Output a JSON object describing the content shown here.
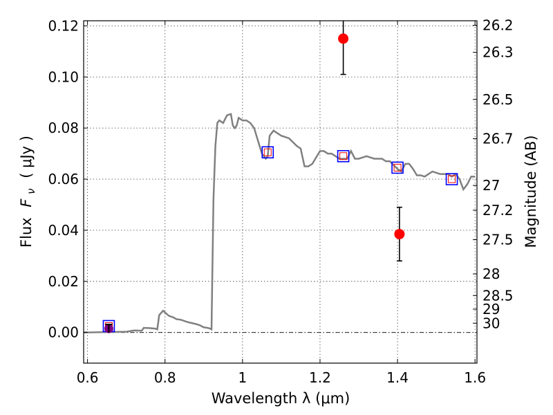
{
  "chart_data": {
    "type": "line",
    "xlabel": "Wavelength  λ (μm)",
    "ylabel_text": "Flux",
    "ylabel_symbol": "F",
    "ylabel_subscript": "ν",
    "ylabel_unit": "( μJy )",
    "y2label": "Magnitude (AB)",
    "xlim": [
      0.59,
      1.605
    ],
    "ylim": [
      -0.012,
      0.122
    ],
    "grid": true,
    "x_ticks": [
      0.6,
      0.8,
      1.0,
      1.2,
      1.4,
      1.6
    ],
    "x_tick_labels": [
      "0.6",
      "0.8",
      "1",
      "1.2",
      "1.4",
      "1.6"
    ],
    "y_ticks": [
      0.0,
      0.02,
      0.04,
      0.06,
      0.08,
      0.1,
      0.12
    ],
    "y_tick_labels": [
      "0.00",
      "0.02",
      "0.04",
      "0.06",
      "0.08",
      "0.10",
      "0.12"
    ],
    "mag_ticks": [
      26.2,
      26.3,
      26.5,
      26.7,
      27,
      27.2,
      27.5,
      28,
      28.5,
      29,
      30
    ],
    "mag_tick_labels": [
      "26.2",
      "26.3",
      "26.5",
      "26.7",
      "27",
      "27.2",
      "27.5",
      "28",
      "28.5",
      "29",
      "30"
    ],
    "colors": {
      "model": "#808080",
      "observed": "#ff0000",
      "model_box": "#0000ff",
      "model_inner": "#ff0000",
      "upper_limit": "#800080",
      "errorbar": "#000000"
    },
    "model_sed": {
      "x": [
        0.59,
        0.7,
        0.72,
        0.74,
        0.745,
        0.76,
        0.775,
        0.78,
        0.785,
        0.795,
        0.81,
        0.82,
        0.83,
        0.84,
        0.86,
        0.88,
        0.89,
        0.9,
        0.91,
        0.915,
        0.92,
        0.925,
        0.93,
        0.935,
        0.94,
        0.95,
        0.96,
        0.97,
        0.975,
        0.98,
        0.985,
        0.99,
        1.0,
        1.01,
        1.02,
        1.03,
        1.04,
        1.05,
        1.06,
        1.065,
        1.07,
        1.08,
        1.09,
        1.1,
        1.12,
        1.14,
        1.15,
        1.16,
        1.17,
        1.18,
        1.2,
        1.21,
        1.22,
        1.23,
        1.25,
        1.26,
        1.27,
        1.28,
        1.29,
        1.3,
        1.32,
        1.34,
        1.36,
        1.37,
        1.38,
        1.4,
        1.41,
        1.42,
        1.43,
        1.44,
        1.45,
        1.46,
        1.47,
        1.49,
        1.51,
        1.53,
        1.54,
        1.55,
        1.56,
        1.57,
        1.58,
        1.59,
        1.6
      ],
      "y": [
        0.0,
        0.0003,
        0.0008,
        0.0007,
        0.0018,
        0.0017,
        0.0015,
        0.0012,
        0.0068,
        0.0085,
        0.0065,
        0.006,
        0.0052,
        0.005,
        0.004,
        0.0033,
        0.0028,
        0.002,
        0.0018,
        0.0016,
        0.0012,
        0.052,
        0.073,
        0.082,
        0.083,
        0.082,
        0.085,
        0.0855,
        0.081,
        0.08,
        0.081,
        0.084,
        0.083,
        0.083,
        0.082,
        0.08,
        0.075,
        0.07,
        0.068,
        0.069,
        0.077,
        0.079,
        0.078,
        0.077,
        0.076,
        0.073,
        0.072,
        0.065,
        0.065,
        0.066,
        0.071,
        0.071,
        0.07,
        0.07,
        0.068,
        0.068,
        0.068,
        0.071,
        0.068,
        0.068,
        0.069,
        0.068,
        0.068,
        0.067,
        0.067,
        0.064,
        0.063,
        0.066,
        0.066,
        0.064,
        0.0615,
        0.0615,
        0.061,
        0.063,
        0.062,
        0.062,
        0.061,
        0.062,
        0.06,
        0.056,
        0.058,
        0.061,
        0.061
      ]
    },
    "observed_points": [
      {
        "x": 1.26,
        "y": 0.115,
        "yerr_low": 0.014,
        "yerr_high": 0.008
      },
      {
        "x": 1.405,
        "y": 0.0385,
        "yerr_low": 0.0105,
        "yerr_high": 0.0105
      }
    ],
    "model_photometry": [
      {
        "x": 0.655,
        "y": 0.0025
      },
      {
        "x": 1.065,
        "y": 0.0705
      },
      {
        "x": 1.26,
        "y": 0.069
      },
      {
        "x": 1.4,
        "y": 0.0645
      },
      {
        "x": 1.54,
        "y": 0.06
      }
    ],
    "upper_limit": {
      "x": 0.655,
      "y": 0.0015
    }
  }
}
